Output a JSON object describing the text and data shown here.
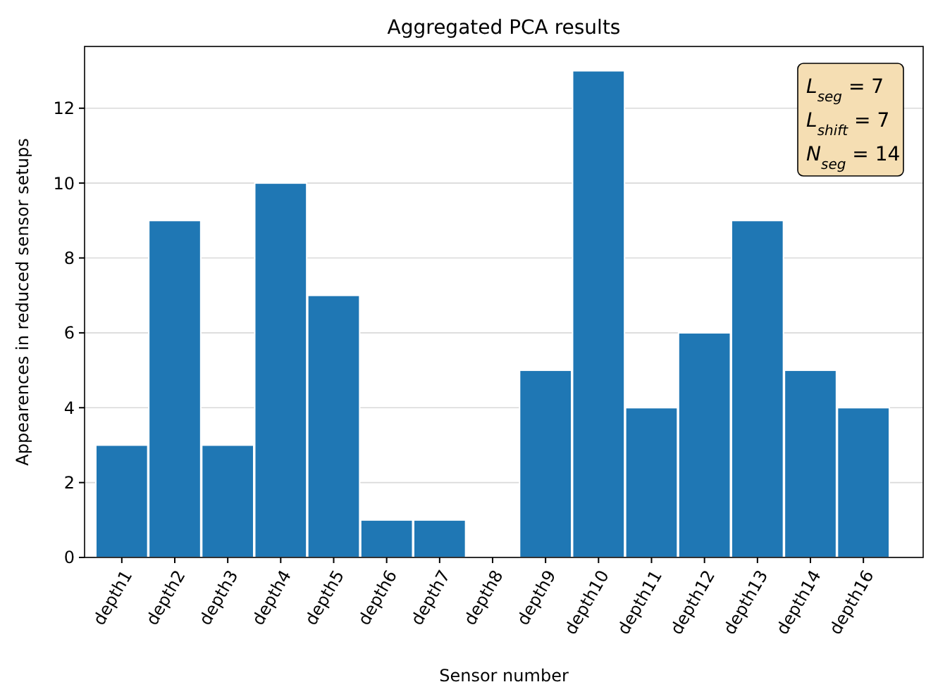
{
  "chart_data": {
    "type": "bar",
    "title": "Aggregated PCA results",
    "xlabel": "Sensor number",
    "ylabel": "Appearences in reduced sensor setups",
    "categories": [
      "depth1",
      "depth2",
      "depth3",
      "depth4",
      "depth5",
      "depth6",
      "depth7",
      "depth8",
      "depth9",
      "depth10",
      "depth11",
      "depth12",
      "depth13",
      "depth14",
      "depth16"
    ],
    "values": [
      3,
      9,
      3,
      10,
      7,
      1,
      1,
      0,
      5,
      13,
      4,
      6,
      9,
      5,
      4
    ],
    "color": "#1f77b4",
    "ylim": [
      0,
      13.65
    ],
    "yticks": [
      0,
      2,
      4,
      6,
      8,
      10,
      12
    ],
    "grid": "y",
    "annotations": [
      "L$_{seg}$ = 7",
      "L$_{shift}$ = 7",
      "N$_{seg}$ = 14"
    ]
  }
}
